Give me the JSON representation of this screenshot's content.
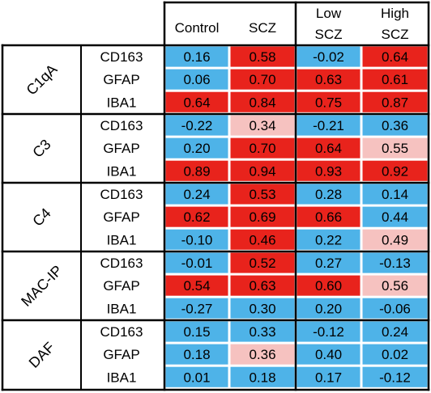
{
  "chart_data": {
    "type": "heatmap",
    "columns": [
      {
        "label_lines": [
          "Control"
        ]
      },
      {
        "label_lines": [
          "SCZ"
        ]
      },
      {
        "label_lines": [
          "Low",
          "SCZ"
        ]
      },
      {
        "label_lines": [
          "High",
          "SCZ"
        ]
      }
    ],
    "groups": [
      {
        "name": "C1qA",
        "rows": [
          {
            "label": "CD163",
            "values": [
              0.16,
              0.58,
              -0.02,
              0.64
            ],
            "colors": [
              "blue",
              "red",
              "blue",
              "red"
            ]
          },
          {
            "label": "GFAP",
            "values": [
              0.06,
              0.7,
              0.63,
              0.61
            ],
            "colors": [
              "blue",
              "red",
              "red",
              "red"
            ]
          },
          {
            "label": "IBA1",
            "values": [
              0.64,
              0.84,
              0.75,
              0.87
            ],
            "colors": [
              "red",
              "red",
              "red",
              "red"
            ]
          }
        ]
      },
      {
        "name": "C3",
        "rows": [
          {
            "label": "CD163",
            "values": [
              -0.22,
              0.34,
              -0.21,
              0.36
            ],
            "colors": [
              "blue",
              "pink",
              "blue",
              "blue"
            ]
          },
          {
            "label": "GFAP",
            "values": [
              0.2,
              0.7,
              0.64,
              0.55
            ],
            "colors": [
              "blue",
              "red",
              "red",
              "pink"
            ]
          },
          {
            "label": "IBA1",
            "values": [
              0.89,
              0.94,
              0.93,
              0.92
            ],
            "colors": [
              "red",
              "red",
              "red",
              "red"
            ]
          }
        ]
      },
      {
        "name": "C4",
        "rows": [
          {
            "label": "CD163",
            "values": [
              0.24,
              0.53,
              0.28,
              0.14
            ],
            "colors": [
              "blue",
              "red",
              "blue",
              "blue"
            ]
          },
          {
            "label": "GFAP",
            "values": [
              0.62,
              0.69,
              0.66,
              0.44
            ],
            "colors": [
              "red",
              "red",
              "red",
              "blue"
            ]
          },
          {
            "label": "IBA1",
            "values": [
              -0.1,
              0.46,
              0.22,
              0.49
            ],
            "colors": [
              "blue",
              "red",
              "blue",
              "pink"
            ]
          }
        ]
      },
      {
        "name": "MAC-IP",
        "rows": [
          {
            "label": "CD163",
            "values": [
              -0.01,
              0.52,
              0.27,
              -0.13
            ],
            "colors": [
              "blue",
              "red",
              "blue",
              "blue"
            ]
          },
          {
            "label": "GFAP",
            "values": [
              0.54,
              0.63,
              0.6,
              0.56
            ],
            "colors": [
              "red",
              "red",
              "red",
              "pink"
            ]
          },
          {
            "label": "IBA1",
            "values": [
              -0.27,
              0.3,
              0.2,
              -0.06
            ],
            "colors": [
              "blue",
              "blue",
              "blue",
              "blue"
            ]
          }
        ]
      },
      {
        "name": "DAF",
        "rows": [
          {
            "label": "CD163",
            "values": [
              0.15,
              0.33,
              -0.12,
              0.24
            ],
            "colors": [
              "blue",
              "blue",
              "blue",
              "blue"
            ]
          },
          {
            "label": "GFAP",
            "values": [
              0.18,
              0.36,
              0.4,
              0.02
            ],
            "colors": [
              "blue",
              "pink",
              "blue",
              "blue"
            ]
          },
          {
            "label": "IBA1",
            "values": [
              0.01,
              0.18,
              0.17,
              -0.12
            ],
            "colors": [
              "blue",
              "blue",
              "blue",
              "blue"
            ]
          }
        ]
      }
    ],
    "palette": {
      "blue": "#4EB3E8",
      "red": "#E8231C",
      "pink": "#F6C2C0"
    }
  }
}
